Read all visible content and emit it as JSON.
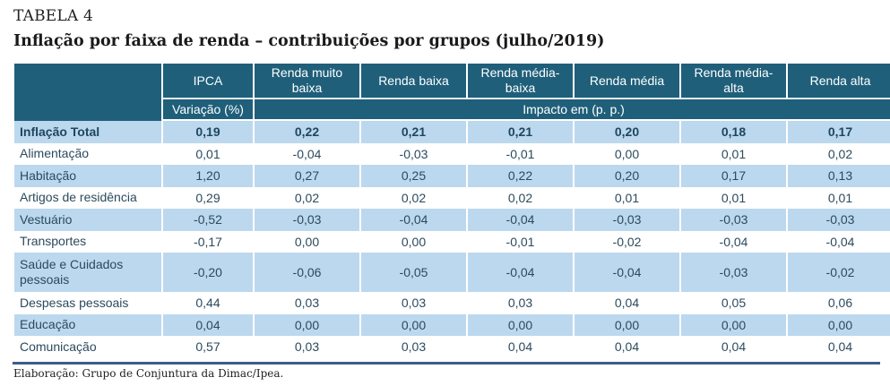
{
  "document": {
    "label": "TABELA 4",
    "title": "Inflação por faixa de renda – contribuições por grupos (julho/2019)",
    "source": "Elaboração: Grupo de Conjuntura da Dimac/Ipea."
  },
  "table": {
    "header": {
      "columns": [
        "IPCA",
        "Renda muito baixa",
        "Renda baixa",
        "Renda média-baixa",
        "Renda média",
        "Renda média-alta",
        "Renda alta"
      ],
      "subheader_ipca": "Variação (%)",
      "subheader_impact": "Impacto em (p. p.)"
    },
    "rows": [
      {
        "label": "Inflação Total",
        "values": [
          "0,19",
          "0,22",
          "0,21",
          "0,21",
          "0,20",
          "0,18",
          "0,17"
        ]
      },
      {
        "label": "Alimentação",
        "values": [
          "0,01",
          "-0,04",
          "-0,03",
          "-0,01",
          "0,00",
          "0,01",
          "0,02"
        ]
      },
      {
        "label": "Habitação",
        "values": [
          "1,20",
          "0,27",
          "0,25",
          "0,22",
          "0,20",
          "0,17",
          "0,13"
        ]
      },
      {
        "label": "Artigos de residência",
        "values": [
          "0,29",
          "0,02",
          "0,02",
          "0,02",
          "0,01",
          "0,01",
          "0,01"
        ]
      },
      {
        "label": "Vestuário",
        "values": [
          "-0,52",
          "-0,03",
          "-0,04",
          "-0,04",
          "-0,03",
          "-0,03",
          "-0,03"
        ]
      },
      {
        "label": "Transportes",
        "values": [
          "-0,17",
          "0,00",
          "0,00",
          "-0,01",
          "-0,02",
          "-0,04",
          "-0,04"
        ]
      },
      {
        "label": "Saúde e Cuidados pessoais",
        "values": [
          "-0,20",
          "-0,06",
          "-0,05",
          "-0,04",
          "-0,04",
          "-0,03",
          "-0,02"
        ]
      },
      {
        "label": "Despesas pessoais",
        "values": [
          "0,44",
          "0,03",
          "0,03",
          "0,03",
          "0,04",
          "0,05",
          "0,06"
        ]
      },
      {
        "label": "Educação",
        "values": [
          "0,04",
          "0,00",
          "0,00",
          "0,00",
          "0,00",
          "0,00",
          "0,00"
        ]
      },
      {
        "label": "Comunicação",
        "values": [
          "0,57",
          "0,03",
          "0,03",
          "0,04",
          "0,04",
          "0,04",
          "0,04"
        ]
      }
    ]
  },
  "colors": {
    "header_bg": "#1f5f7a",
    "shade_row_bg": "#bcd8ee",
    "rule": "#3a5f86"
  }
}
